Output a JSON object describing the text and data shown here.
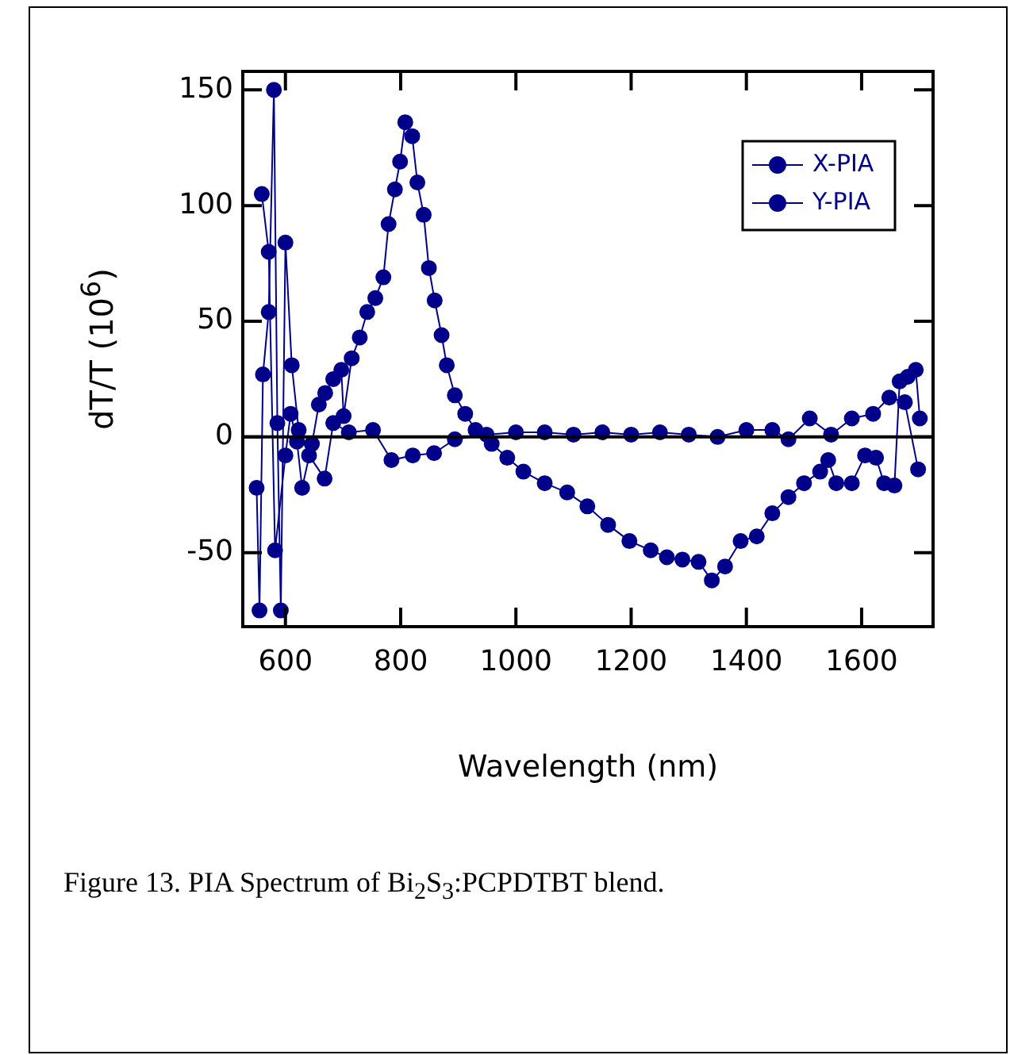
{
  "chart_data": {
    "type": "line",
    "xlabel": "Wavelength (nm)",
    "ylabel": "dT/T (10$^{6}$)",
    "xlim": [
      526,
      1724
    ],
    "xticks": [
      600,
      800,
      1000,
      1200,
      1400,
      1600
    ],
    "ylim": [
      -82,
      158
    ],
    "yticks": [
      -50,
      0,
      50,
      100,
      150
    ],
    "grid": false,
    "legend": "top right",
    "marker": "circle",
    "line_style": "solid",
    "ref_lines": [
      {
        "axis": "y",
        "value": 0,
        "color": "#000000"
      }
    ],
    "annotations": [
      "Figure 13. PIA Spectrum of Bi$_{2}$S$_{3}$:PCPDTBT blend."
    ],
    "series": [
      {
        "name": "X-PIA",
        "color": "#00008b",
        "x": [
          559,
          571,
          582,
          600,
          609,
          620,
          629,
          646,
          658,
          669,
          683,
          697,
          701,
          715,
          729,
          742,
          756,
          770,
          779,
          790,
          799,
          808,
          820,
          829,
          840,
          849,
          859,
          871,
          880,
          894,
          912,
          930,
          958,
          985,
          1013,
          1050,
          1089,
          1124,
          1160,
          1197,
          1234,
          1262,
          1289,
          1317,
          1340,
          1363,
          1390,
          1418,
          1445,
          1473,
          1500,
          1528,
          1542,
          1556,
          1583,
          1606,
          1625,
          1639,
          1657,
          1666,
          1680,
          1694,
          1701
        ],
        "values": [
          105,
          80,
          -49,
          -8,
          10,
          -2,
          -22,
          -3,
          14,
          19,
          25,
          29,
          9,
          34,
          43,
          54,
          60,
          69,
          92,
          107,
          119,
          136,
          130,
          110,
          96,
          73,
          59,
          44,
          31,
          18,
          10,
          3,
          -3,
          -9,
          -15,
          -20,
          -24,
          -30,
          -38,
          -45,
          -49,
          -52,
          -53,
          -54,
          -62,
          -56,
          -45,
          -43,
          -33,
          -26,
          -20,
          -15,
          -10,
          -20,
          -20,
          -8,
          -9,
          -20,
          -21,
          24,
          26,
          29,
          8
        ]
      },
      {
        "name": "Y-PIA",
        "color": "#00008b",
        "x": [
          550,
          555,
          561,
          571,
          580,
          586,
          592,
          600,
          611,
          623,
          641,
          668,
          683,
          710,
          752,
          784,
          821,
          858,
          894,
          949,
          1000,
          1050,
          1100,
          1150,
          1200,
          1250,
          1300,
          1350,
          1400,
          1445,
          1473,
          1510,
          1547,
          1583,
          1620,
          1648,
          1675,
          1698
        ],
        "values": [
          -22,
          -75,
          27,
          54,
          150,
          6,
          -75,
          84,
          31,
          3,
          -8,
          -18,
          6,
          2,
          3,
          -10,
          -8,
          -7,
          -1,
          1,
          2,
          2,
          1,
          2,
          1,
          2,
          1,
          0,
          3,
          3,
          -1,
          8,
          1,
          8,
          10,
          17,
          15,
          -14
        ]
      }
    ]
  }
}
